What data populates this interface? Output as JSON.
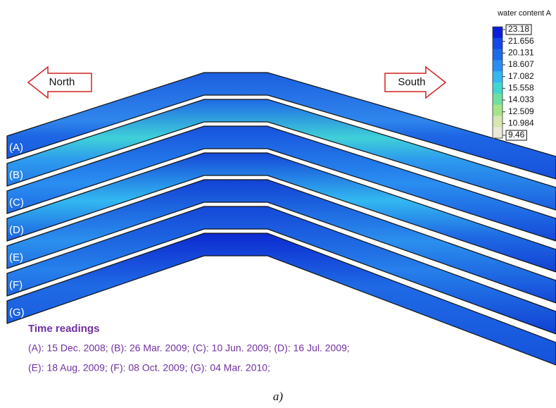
{
  "directions": {
    "left": "North",
    "right": "South"
  },
  "colorbar": {
    "title": "water content A",
    "labels": [
      "23.18",
      "21.656",
      "20.131",
      "18.607",
      "17.082",
      "15.558",
      "14.033",
      "12.509",
      "10.984",
      "9.46"
    ],
    "colors": [
      "#0a1fd8",
      "#1248e6",
      "#1c6ae8",
      "#2a8ef0",
      "#33b8f0",
      "#3fd8d0",
      "#6fe0a0",
      "#a6e48a",
      "#d6e6b0",
      "#eae8d6"
    ]
  },
  "layers": [
    "(A)",
    "(B)",
    "(C)",
    "(D)",
    "(E)",
    "(F)",
    "(G)"
  ],
  "readings": {
    "heading": "Time readings",
    "lines": [
      "(A): 15 Dec. 2008; (B): 26 Mar. 2009; (C): 10 Jun. 2009; (D): 16 Jul. 2009;",
      "(E): 18 Aug. 2009; (F): 08 Oct. 2009; (G): 04 Mar. 2010;"
    ]
  },
  "caption": "a)"
}
